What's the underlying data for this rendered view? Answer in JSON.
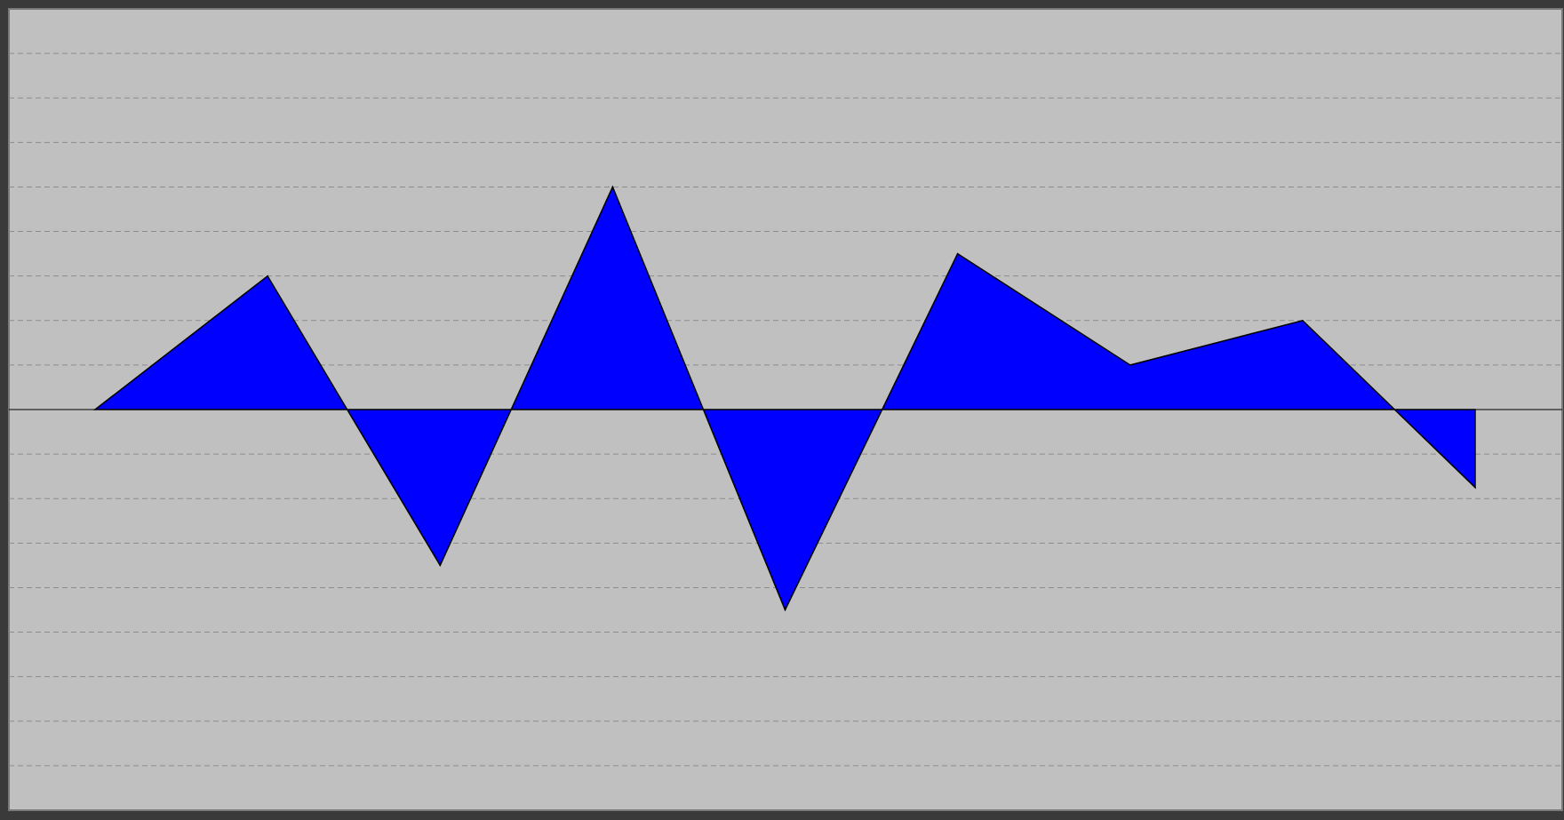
{
  "chart_data": {
    "type": "area",
    "title": "",
    "xlabel": "",
    "ylabel": "",
    "x": [
      0,
      1,
      2,
      3,
      4,
      5,
      6,
      7,
      8
    ],
    "values": [
      0,
      3,
      -3.5,
      5,
      -4.5,
      3.5,
      1,
      2,
      -1.75
    ],
    "ylim": [
      -9,
      9
    ],
    "y_grid_step": 1,
    "grid": true,
    "grid_style": "dashed",
    "colors": {
      "background": "#c0c0c0",
      "frame": "#3a3a3a",
      "fill": "#0000ff",
      "stroke": "#000000",
      "grid": "#8c8c8c",
      "baseline": "#000000"
    }
  }
}
